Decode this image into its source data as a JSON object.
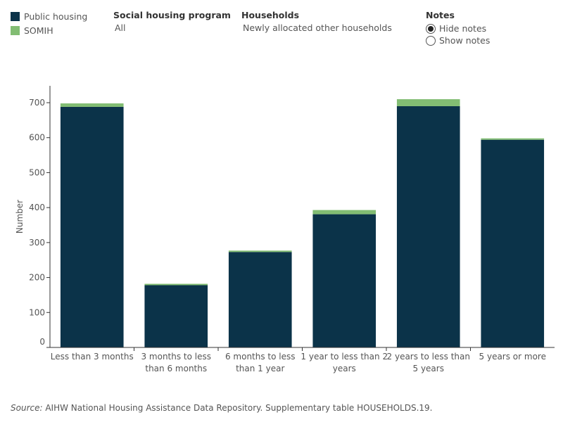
{
  "legend": {
    "items": [
      {
        "label": "Public housing",
        "color": "#0b3349"
      },
      {
        "label": "SOMIH",
        "color": "#82bd73"
      }
    ]
  },
  "filters": {
    "program": {
      "title": "Social housing program",
      "value": "All"
    },
    "households": {
      "title": "Households",
      "value": "Newly allocated other households"
    },
    "notes": {
      "title": "Notes",
      "options": [
        "Hide notes",
        "Show notes"
      ],
      "selected": "Hide notes"
    }
  },
  "chart_data": {
    "type": "bar",
    "stacked": true,
    "categories": [
      [
        "Less than 3 months"
      ],
      [
        "3 months to less",
        "than 6 months"
      ],
      [
        "6 months to less",
        "than 1 year"
      ],
      [
        "1 year to less than 2",
        "years"
      ],
      [
        "2 years to less than",
        "5 years"
      ],
      [
        "5 years or more"
      ]
    ],
    "series": [
      {
        "name": "Public housing",
        "color": "#0b3349",
        "values": [
          688,
          178,
          273,
          381,
          690,
          594
        ]
      },
      {
        "name": "SOMIH",
        "color": "#82bd73",
        "values": [
          10,
          4,
          4,
          12,
          20,
          4
        ]
      }
    ],
    "ylabel": "Number",
    "ylim": [
      0,
      700
    ],
    "yticks": [
      0,
      100,
      200,
      300,
      400,
      500,
      600,
      700
    ],
    "grid": false
  },
  "source": {
    "lead": "Source:",
    "text": " AIHW National Housing Assistance Data Repository. Supplementary table HOUSEHOLDS.19."
  }
}
